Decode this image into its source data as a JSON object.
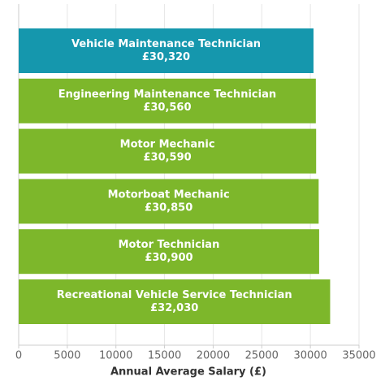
{
  "chart_data": {
    "type": "bar",
    "orientation": "horizontal",
    "x_label": "Annual Average Salary (£)",
    "categories": [
      "Vehicle Maintenance Technician",
      "Engineering Maintenance Technician",
      "Motor Mechanic",
      "Motorboat Mechanic",
      "Motor Technician",
      "Recreational Vehicle Service Technician"
    ],
    "values": [
      30320,
      30560,
      30590,
      30850,
      30900,
      32030
    ],
    "value_labels": [
      "£30,320",
      "£30,560",
      "£30,590",
      "£30,850",
      "£30,900",
      "£32,030"
    ],
    "colors": [
      "#1597ad",
      "#7db72b",
      "#7db72b",
      "#7db72b",
      "#7db72b",
      "#7db72b"
    ],
    "xlim": [
      0,
      35000
    ],
    "xticks": [
      0,
      5000,
      10000,
      15000,
      20000,
      25000,
      30000,
      35000
    ],
    "grid": true
  }
}
